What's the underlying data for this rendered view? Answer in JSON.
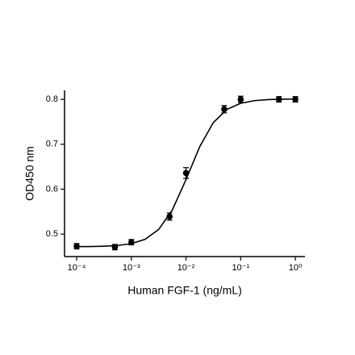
{
  "chart_data": {
    "type": "scatter",
    "x_label": "Human FGF-1 (ng/mL)",
    "y_label": "OD450 nm",
    "x_scale": "log",
    "xlim": [
      6e-05,
      1.5
    ],
    "ylim": [
      0.45,
      0.82
    ],
    "xticks": [
      {
        "value": 0.0001,
        "label": "10⁻⁴"
      },
      {
        "value": 0.001,
        "label": "10⁻³"
      },
      {
        "value": 0.01,
        "label": "10⁻²"
      },
      {
        "value": 0.1,
        "label": "10⁻¹"
      },
      {
        "value": 1,
        "label": "10⁰"
      }
    ],
    "yticks": [
      0.5,
      0.6,
      0.7,
      0.8
    ],
    "color": "#000000",
    "x": [
      0.0001,
      0.0005,
      0.001,
      0.005,
      0.01,
      0.05,
      0.1,
      0.5,
      1
    ],
    "values": [
      0.473,
      0.471,
      0.482,
      0.539,
      0.636,
      0.778,
      0.8,
      0.8,
      0.8
    ],
    "errors": [
      0.006,
      0.006,
      0.006,
      0.008,
      0.012,
      0.008,
      0.007,
      0.006,
      0.006
    ],
    "fit": {
      "x": [
        0.0001,
        0.000178,
        0.000316,
        0.000562,
        0.001,
        0.00178,
        0.00316,
        0.00562,
        0.01,
        0.0178,
        0.0316,
        0.0562,
        0.1,
        0.178,
        0.316,
        0.562,
        1
      ],
      "values": [
        0.4722,
        0.4724,
        0.4731,
        0.4747,
        0.4787,
        0.4884,
        0.5103,
        0.5538,
        0.6214,
        0.6945,
        0.7483,
        0.7778,
        0.7913,
        0.7971,
        0.7994,
        0.8004,
        0.8007
      ]
    }
  }
}
